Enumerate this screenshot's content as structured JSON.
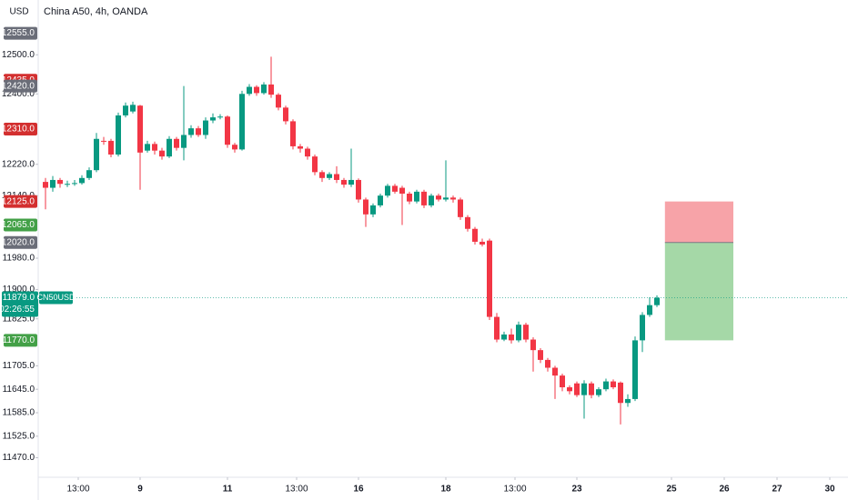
{
  "chart_data": {
    "type": "candlestick",
    "title": "China A50, 4h, OANDA",
    "currency": "USD",
    "up_color": "#089981",
    "down_color": "#f23645",
    "x": [
      0,
      1,
      2,
      3,
      4,
      5,
      6,
      7,
      8,
      9,
      10,
      11,
      12,
      13,
      14,
      15,
      16,
      17,
      18,
      19,
      20,
      21,
      22,
      23,
      24,
      25,
      26,
      27,
      28,
      29,
      30,
      31,
      32,
      33,
      34,
      35,
      36,
      37,
      38,
      39,
      40,
      41,
      42,
      43,
      44,
      45,
      46,
      47,
      48,
      49,
      50,
      51,
      52,
      53,
      54,
      55,
      56,
      57,
      58,
      59,
      60,
      61,
      62,
      63,
      64,
      65,
      66,
      67,
      68,
      69,
      70,
      71,
      72,
      73,
      74,
      75,
      76,
      77,
      78,
      79,
      80,
      81,
      82,
      83,
      84
    ],
    "open": [
      12175,
      12160,
      12180,
      12170,
      12170,
      12172,
      12185,
      12205,
      12280,
      12280,
      12245,
      12345,
      12355,
      12370,
      12255,
      12272,
      12255,
      12240,
      12285,
      12262,
      12295,
      12312,
      12295,
      12332,
      12340,
      12342,
      12270,
      12258,
      12400,
      12418,
      12402,
      12424,
      12398,
      12365,
      12330,
      12266,
      12260,
      12240,
      12200,
      12185,
      12195,
      12180,
      12168,
      12180,
      12130,
      12092,
      12115,
      12140,
      12165,
      12160,
      12145,
      12125,
      12150,
      12115,
      12140,
      12130,
      12135,
      12130,
      12085,
      12055,
      12022,
      12025,
      11830,
      11772,
      11785,
      11770,
      11810,
      11772,
      11745,
      11720,
      11700,
      11680,
      11650,
      11660,
      11630,
      11660,
      11630,
      11645,
      11665,
      11662,
      11610,
      11620,
      11770,
      11835,
      11860
    ],
    "high": [
      12185,
      12190,
      12185,
      12178,
      12180,
      12192,
      12212,
      12300,
      12290,
      12285,
      12352,
      12378,
      12380,
      12372,
      12280,
      12278,
      12262,
      12292,
      12290,
      12420,
      12320,
      12318,
      12340,
      12350,
      12348,
      12345,
      12275,
      12408,
      12425,
      12422,
      12430,
      12495,
      12402,
      12370,
      12335,
      12272,
      12265,
      12245,
      12205,
      12200,
      12215,
      12185,
      12260,
      12184,
      12135,
      12120,
      12145,
      12170,
      12170,
      12165,
      12150,
      12155,
      12155,
      12145,
      12145,
      12230,
      12140,
      12135,
      12090,
      12060,
      12030,
      12030,
      11840,
      11792,
      11800,
      11818,
      11815,
      11778,
      11750,
      11725,
      11705,
      11685,
      11655,
      11665,
      11668,
      11665,
      11650,
      11672,
      11670,
      11665,
      11632,
      11780,
      11842,
      11880,
      11885
    ],
    "low": [
      12105,
      12150,
      12160,
      12162,
      12165,
      12168,
      12180,
      12200,
      12270,
      12238,
      12240,
      12340,
      12350,
      12155,
      12250,
      12245,
      12232,
      12236,
      12255,
      12230,
      12288,
      12290,
      12285,
      12325,
      12335,
      12262,
      12250,
      12255,
      12395,
      12395,
      12398,
      12390,
      12358,
      12322,
      12258,
      12250,
      12232,
      12192,
      12175,
      12180,
      12172,
      12160,
      12162,
      12122,
      12060,
      12085,
      12110,
      12135,
      12145,
      12065,
      12118,
      12120,
      12108,
      12110,
      12125,
      12125,
      12122,
      12078,
      12048,
      12015,
      12010,
      11822,
      11765,
      11768,
      11762,
      11765,
      11765,
      11690,
      11712,
      11690,
      11620,
      11640,
      11632,
      11625,
      11570,
      11622,
      11625,
      11640,
      11645,
      11555,
      11600,
      11615,
      11740,
      11830,
      11855
    ],
    "close": [
      12160,
      12180,
      12170,
      12170,
      12172,
      12185,
      12205,
      12285,
      12278,
      12245,
      12345,
      12370,
      12372,
      12250,
      12272,
      12255,
      12240,
      12285,
      12262,
      12295,
      12312,
      12295,
      12332,
      12340,
      12342,
      12270,
      12258,
      12400,
      12418,
      12402,
      12424,
      12398,
      12365,
      12330,
      12266,
      12260,
      12240,
      12200,
      12185,
      12195,
      12180,
      12168,
      12180,
      12130,
      12092,
      12115,
      12140,
      12165,
      12150,
      12145,
      12125,
      12150,
      12115,
      12140,
      12130,
      12135,
      12130,
      12085,
      12055,
      12022,
      12015,
      11830,
      11772,
      11785,
      11770,
      11810,
      11772,
      11745,
      11720,
      11700,
      11680,
      11650,
      11640,
      11630,
      11660,
      11630,
      11645,
      11665,
      11650,
      11610,
      11620,
      11770,
      11835,
      11860,
      11879
    ],
    "ylim": [
      11420,
      12640
    ],
    "yticks": [
      {
        "value": 12500,
        "label": "12500.0"
      },
      {
        "value": 12400,
        "label": "12400.0"
      },
      {
        "value": 12220,
        "label": "12220.0"
      },
      {
        "value": 12140,
        "label": "12140.0"
      },
      {
        "value": 11980,
        "label": "11980.0"
      },
      {
        "value": 11900,
        "label": "11900.0"
      },
      {
        "value": 11825,
        "label": "11825.0"
      },
      {
        "value": 11705,
        "label": "11705.0"
      },
      {
        "value": 11645,
        "label": "11645.0"
      },
      {
        "value": 11585,
        "label": "11585.0"
      },
      {
        "value": 11525,
        "label": "11525.0"
      },
      {
        "value": 11470,
        "label": "11470.0"
      }
    ],
    "xlim": [
      -1,
      110.25
    ],
    "xticks": [
      {
        "value": 4.5,
        "label": "13:00"
      },
      {
        "value": 13,
        "label": "9"
      },
      {
        "value": 25,
        "label": "11"
      },
      {
        "value": 34.5,
        "label": "13:00"
      },
      {
        "value": 43,
        "label": "16"
      },
      {
        "value": 55,
        "label": "18"
      },
      {
        "value": 64.5,
        "label": "13:00"
      },
      {
        "value": 73,
        "label": "23"
      },
      {
        "value": 86,
        "label": "25"
      },
      {
        "value": 93.25,
        "label": "26"
      },
      {
        "value": 100.5,
        "label": "27"
      },
      {
        "value": 107.75,
        "label": "30"
      }
    ],
    "price_markers": [
      {
        "value": 12555,
        "label": "12555.0",
        "color": "#6a6d78"
      },
      {
        "value": 12435,
        "label": "12435.0",
        "color": "#d32f2f"
      },
      {
        "value": 12420,
        "label": "12420.0",
        "color": "#6a6d78"
      },
      {
        "value": 12310,
        "label": "12310.0",
        "color": "#d32f2f"
      },
      {
        "value": 12125,
        "label": "12125.0",
        "color": "#d32f2f"
      },
      {
        "value": 12065,
        "label": "12065.0",
        "color": "#43a047"
      },
      {
        "value": 12020,
        "label": "12020.0",
        "color": "#6a6d78"
      },
      {
        "value": 11770,
        "label": "11770.0",
        "color": "#43a047"
      }
    ],
    "last_price": {
      "value": 11879,
      "label": "11879.0",
      "symbol": "CN50USD",
      "countdown": "02:26:55",
      "color": "#089981"
    },
    "position": {
      "x_start": 85.1,
      "x_end": 94.5,
      "stop": 12125,
      "entry": 12020,
      "target": 11770,
      "stop_color": "#f7a3a8",
      "target_color": "#a5d8a7"
    }
  }
}
